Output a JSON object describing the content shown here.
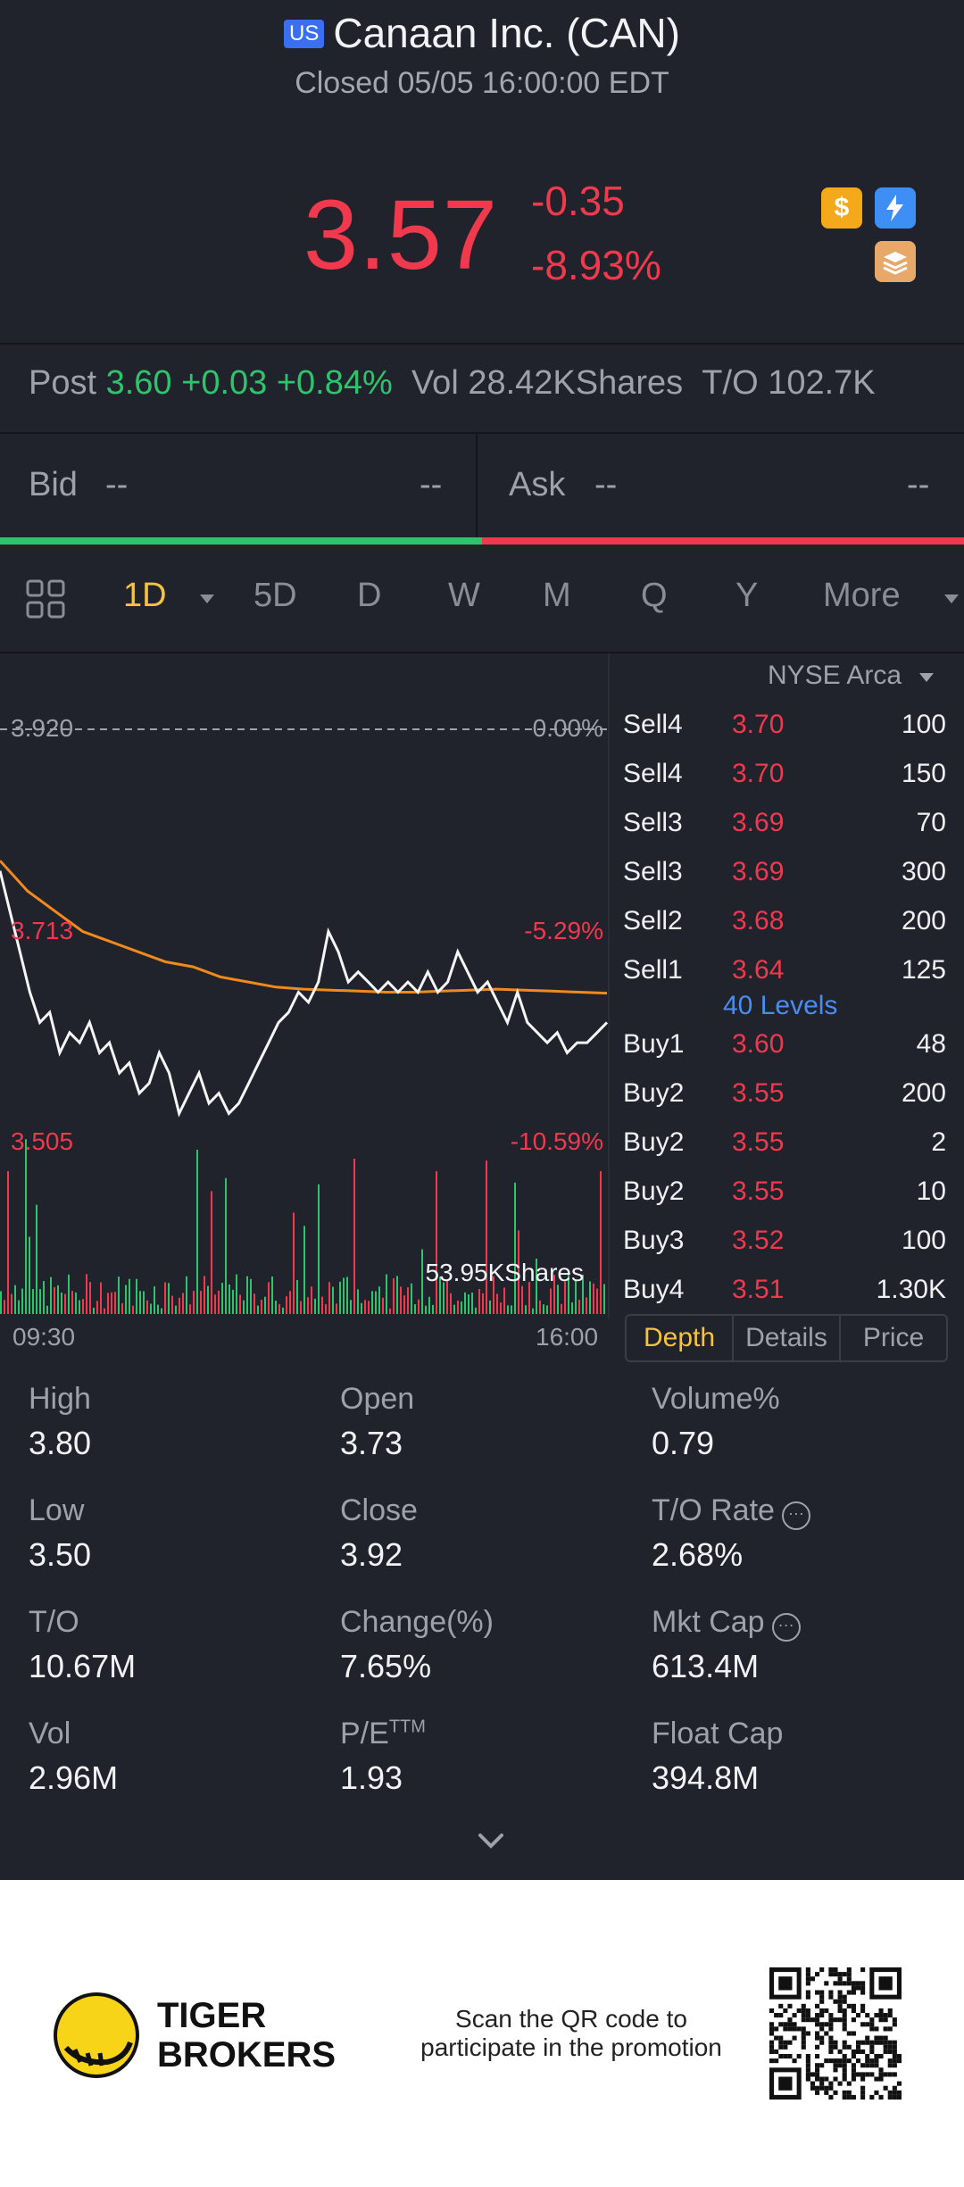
{
  "header": {
    "market_badge": "US",
    "title": "Canaan Inc. (CAN)",
    "status": "Closed 05/05 16:00:00 EDT"
  },
  "quote": {
    "price": "3.57",
    "change": "-0.35",
    "change_pct": "-8.93%"
  },
  "post_market": {
    "label": "Post",
    "price": "3.60",
    "change": "+0.03",
    "change_pct": "+0.84%",
    "vol_label": "Vol",
    "vol": "28.42KShares",
    "turnover_label": "T/O",
    "turnover": "102.7K"
  },
  "bid_ask": {
    "bid_label": "Bid",
    "bid_value": "--",
    "bid_size": "--",
    "ask_label": "Ask",
    "ask_value": "--",
    "ask_size": "--"
  },
  "tabs": [
    "1D",
    "5D",
    "D",
    "W",
    "M",
    "Q",
    "Y",
    "More"
  ],
  "active_tab": "1D",
  "chart": {
    "top_price": "3.920",
    "top_pct": "0.00%",
    "mid_price": "3.713",
    "mid_pct": "-5.29%",
    "low_price": "3.505",
    "low_pct": "-10.59%",
    "volume_label": "53.95KShares",
    "time_start": "09:30",
    "time_end": "16:00"
  },
  "chart_data": {
    "type": "line",
    "x_range": [
      "09:30",
      "16:00"
    ],
    "ylim": [
      3.505,
      3.92
    ],
    "reference_close": 3.92,
    "series": [
      {
        "values": [
          3.78,
          3.74,
          3.7,
          3.66,
          3.63,
          3.64,
          3.6,
          3.62,
          3.61,
          3.63,
          3.6,
          3.61,
          3.58,
          3.59,
          3.56,
          3.57,
          3.6,
          3.58,
          3.54,
          3.56,
          3.58,
          3.55,
          3.56,
          3.54,
          3.55,
          3.57,
          3.59,
          3.61,
          3.63,
          3.64,
          3.66,
          3.65,
          3.67,
          3.72,
          3.7,
          3.67,
          3.68,
          3.67,
          3.66,
          3.67,
          3.66,
          3.67,
          3.66,
          3.68,
          3.66,
          3.67,
          3.7,
          3.68,
          3.66,
          3.67,
          3.65,
          3.63,
          3.66,
          3.63,
          3.62,
          3.61,
          3.62,
          3.6,
          3.61,
          3.61,
          3.62,
          3.63
        ]
      },
      {
        "values": [
          3.79,
          3.76,
          3.74,
          3.72,
          3.71,
          3.7,
          3.69,
          3.685,
          3.675,
          3.67,
          3.665,
          3.663,
          3.662,
          3.661,
          3.66,
          3.66,
          3.661,
          3.662,
          3.663,
          3.662,
          3.661,
          3.66,
          3.659
        ]
      }
    ],
    "volume": {
      "label": "53.95KShares"
    }
  },
  "order_book": {
    "exchange": "NYSE Arca",
    "asks": [
      {
        "side": "Sell4",
        "price": "3.70",
        "qty": "100"
      },
      {
        "side": "Sell4",
        "price": "3.70",
        "qty": "150"
      },
      {
        "side": "Sell3",
        "price": "3.69",
        "qty": "70"
      },
      {
        "side": "Sell3",
        "price": "3.69",
        "qty": "300"
      },
      {
        "side": "Sell2",
        "price": "3.68",
        "qty": "200"
      },
      {
        "side": "Sell1",
        "price": "3.64",
        "qty": "125"
      }
    ],
    "levels_link": "40 Levels",
    "bids": [
      {
        "side": "Buy1",
        "price": "3.60",
        "qty": "48"
      },
      {
        "side": "Buy2",
        "price": "3.55",
        "qty": "200"
      },
      {
        "side": "Buy2",
        "price": "3.55",
        "qty": "2"
      },
      {
        "side": "Buy2",
        "price": "3.55",
        "qty": "10"
      },
      {
        "side": "Buy3",
        "price": "3.52",
        "qty": "100"
      },
      {
        "side": "Buy4",
        "price": "3.51",
        "qty": "1.30K"
      }
    ],
    "tabs": [
      "Depth",
      "Details",
      "Price"
    ]
  },
  "stats": [
    {
      "label": "High",
      "value": "3.80"
    },
    {
      "label": "Open",
      "value": "3.73"
    },
    {
      "label": "Volume%",
      "value": "0.79"
    },
    {
      "label": "Low",
      "value": "3.50"
    },
    {
      "label": "Close",
      "value": "3.92"
    },
    {
      "label": "T/O Rate",
      "value": "2.68%"
    },
    {
      "label": "T/O",
      "value": "10.67M"
    },
    {
      "label": "Change(%)",
      "value": "7.65%"
    },
    {
      "label": "Mkt Cap",
      "value": "613.4M"
    },
    {
      "label": "Vol",
      "value": "2.96M"
    },
    {
      "label": "P/E",
      "label_sup": "TTM",
      "value": "1.93"
    },
    {
      "label": "Float Cap",
      "value": "394.8M"
    }
  ],
  "footer": {
    "brand_line1": "TIGER",
    "brand_line2": "BROKERS",
    "promo_line1": "Scan the QR code to",
    "promo_line2": "participate in the promotion"
  },
  "colors": {
    "background": "#20222c",
    "down": "#f0394d",
    "up": "#2fc46c",
    "accent": "#f5c242",
    "link": "#4a8df0"
  },
  "icons": [
    "market-badge",
    "dollar-icon",
    "flash-icon",
    "layers-icon",
    "grid-icon",
    "caret-down-icon",
    "info-icon",
    "chevron-down-icon",
    "tiger-logo",
    "qr-code"
  ]
}
